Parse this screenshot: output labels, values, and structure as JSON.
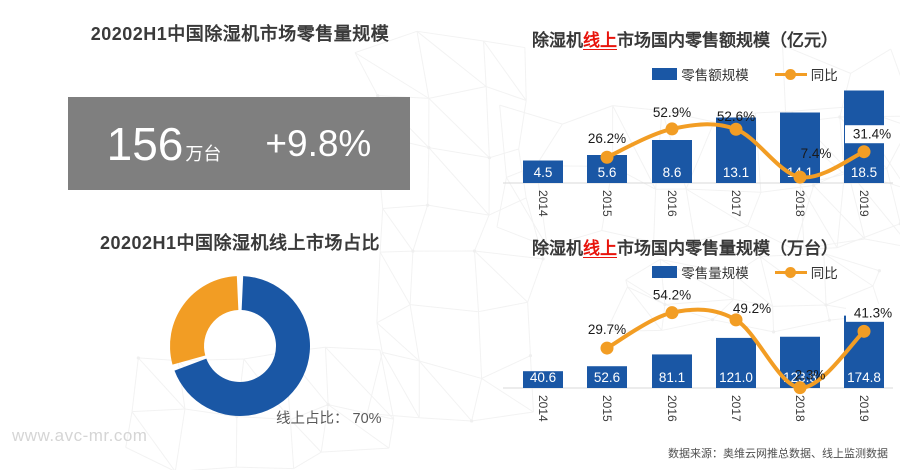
{
  "page": {
    "watermark": "www.avc-mr.com",
    "data_source": "数据来源：奥维云网推总数据、线上监测数据"
  },
  "colors": {
    "bar_blue": "#1A57A5",
    "line_orange": "#F29D24",
    "highlight_red": "#E8140C",
    "kpi_box_gray": "#7F7F7F",
    "axis_gray": "#D9D9D9"
  },
  "left_panel": {
    "kpi_title": "20202H1中国除湿机市场零售量规模",
    "kpi": {
      "value": "156",
      "unit": "万台",
      "growth": "+9.8%"
    }
  },
  "chart_data": [
    {
      "id": "online-retail-revenue",
      "type": "bar",
      "title": {
        "prefix": "除湿机",
        "highlight": "线上",
        "suffix": "市场国内零售额规模（亿元）"
      },
      "categories": [
        "2014",
        "2015",
        "2016",
        "2017",
        "2018",
        "2019"
      ],
      "series": [
        {
          "name": "零售额规模",
          "type": "bar",
          "color": "#1A57A5",
          "values": [
            4.5,
            5.6,
            8.6,
            13.1,
            14.1,
            18.5
          ],
          "labels": [
            "4.5",
            "5.6",
            "8.6",
            "13.1",
            "14.1",
            "18.5"
          ]
        },
        {
          "name": "同比",
          "type": "line",
          "color": "#F29D24",
          "values": [
            null,
            26.2,
            52.9,
            52.6,
            7.4,
            31.4
          ],
          "labels": [
            null,
            "26.2%",
            "52.9%",
            "52.6%",
            "7.4%",
            "31.4%"
          ]
        }
      ],
      "legend_position": "top",
      "grid": false
    },
    {
      "id": "online-retail-volume",
      "type": "bar",
      "title": {
        "prefix": "除湿机",
        "highlight": "线上",
        "suffix": "市场国内零售量规模（万台）"
      },
      "categories": [
        "2014",
        "2015",
        "2016",
        "2017",
        "2018",
        "2019"
      ],
      "series": [
        {
          "name": "零售量规模",
          "type": "bar",
          "color": "#1A57A5",
          "values": [
            40.6,
            52.6,
            81.1,
            121.0,
            123.8,
            174.8
          ],
          "labels": [
            "40.6",
            "52.6",
            "81.1",
            "121.0",
            "123.8",
            "174.8"
          ]
        },
        {
          "name": "同比",
          "type": "line",
          "color": "#F29D24",
          "values": [
            null,
            29.7,
            54.2,
            49.2,
            2.3,
            41.3
          ],
          "labels": [
            null,
            "29.7%",
            "54.2%",
            "49.2%",
            "2.3%",
            "41.3%"
          ]
        }
      ],
      "legend_position": "top",
      "grid": false
    },
    {
      "id": "online-market-share",
      "type": "pie",
      "title": "20202H1中国除湿机线上市场占比",
      "slices": [
        {
          "label": "线上占比",
          "value": 70,
          "color": "#1A57A5"
        },
        {
          "label": "",
          "value": 30,
          "color": "#F29D24"
        }
      ],
      "caption": {
        "label": "线上占比：",
        "value": "70%"
      }
    }
  ]
}
